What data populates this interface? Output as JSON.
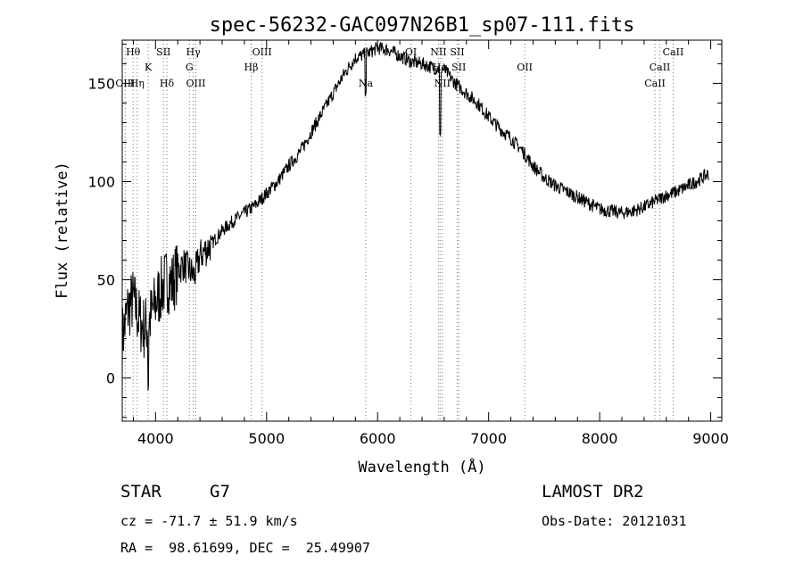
{
  "chart_data": {
    "type": "line",
    "title": "spec-56232-GAC097N26B1_sp07-111.fits",
    "xlabel": "Wavelength (Å)",
    "ylabel": "Flux (relative)",
    "xlim": [
      3700,
      9100
    ],
    "ylim": [
      -22,
      172
    ],
    "xticks": [
      4000,
      5000,
      6000,
      7000,
      8000,
      9000
    ],
    "yticks": [
      0,
      50,
      100,
      150
    ],
    "series": [
      {
        "x": [
          3700,
          3750,
          3800,
          3850,
          3900,
          3950,
          4000,
          4050,
          4100,
          4150,
          4200,
          4250,
          4300,
          4350,
          4400,
          4500,
          4600,
          4700,
          4800,
          4900,
          5000,
          5100,
          5200,
          5300,
          5400,
          5500,
          5600,
          5700,
          5800,
          5900,
          6000,
          6100,
          6200,
          6300,
          6400,
          6500,
          6600,
          6700,
          6800,
          6900,
          7000,
          7100,
          7200,
          7300,
          7400,
          7500,
          7600,
          7700,
          7800,
          7900,
          8000,
          8100,
          8200,
          8300,
          8400,
          8500,
          8600,
          8700,
          8800,
          8900,
          8980
        ],
        "y": [
          20,
          35,
          40,
          30,
          25,
          30,
          38,
          45,
          50,
          48,
          55,
          58,
          55,
          52,
          62,
          68,
          75,
          80,
          84,
          88,
          94,
          100,
          108,
          115,
          125,
          135,
          145,
          155,
          163,
          165,
          168,
          167,
          164,
          161,
          160,
          158,
          157,
          150,
          145,
          140,
          133,
          127,
          122,
          116,
          108,
          102,
          98,
          95,
          92,
          89,
          86,
          85,
          84,
          85,
          87,
          90,
          93,
          95,
          98,
          101,
          104
        ]
      }
    ],
    "markers": {
      "absorption": [
        {
          "label": "Hθ",
          "x": 3798,
          "tier": 1
        },
        {
          "label": "OIII",
          "x": 3727,
          "tier": 3
        },
        {
          "label": "Hη",
          "x": 3835,
          "tier": 3
        },
        {
          "label": "K",
          "x": 3934,
          "tier": 2
        },
        {
          "label": "SII",
          "x": 4072,
          "tier": 1
        },
        {
          "label": "Hδ",
          "x": 4102,
          "tier": 3
        },
        {
          "label": "Hγ",
          "x": 4340,
          "tier": 1
        },
        {
          "label": "G",
          "x": 4305,
          "tier": 2
        },
        {
          "label": "OIII",
          "x": 4363,
          "tier": 3
        },
        {
          "label": "Hβ",
          "x": 4861,
          "tier": 2
        },
        {
          "label": "OIII",
          "x": 4959,
          "tier": 1
        },
        {
          "label": "Na",
          "x": 5893,
          "tier": 3
        },
        {
          "label": "OI",
          "x": 6300,
          "tier": 1
        },
        {
          "label": "NII",
          "x": 6548,
          "tier": 1
        },
        {
          "label": "SII",
          "x": 6717,
          "tier": 1
        },
        {
          "label": "Hα",
          "x": 6563,
          "tier": 2
        },
        {
          "label": "SII",
          "x": 6731,
          "tier": 2
        },
        {
          "label": "NII",
          "x": 6583,
          "tier": 3
        },
        {
          "label": "OII",
          "x": 7325,
          "tier": 2
        },
        {
          "label": "CaII",
          "x": 8662,
          "tier": 1
        },
        {
          "label": "CaII",
          "x": 8542,
          "tier": 2
        },
        {
          "label": "CaII",
          "x": 8498,
          "tier": 3
        }
      ]
    }
  },
  "info": {
    "object_class": "STAR",
    "subclass": "G7",
    "survey": "LAMOST DR2",
    "redshift": "cz = -71.7 ± 51.9 km/s",
    "obs_date": "Obs-Date: 20121031",
    "coords": "RA =  98.61699, DEC =  25.49907"
  }
}
